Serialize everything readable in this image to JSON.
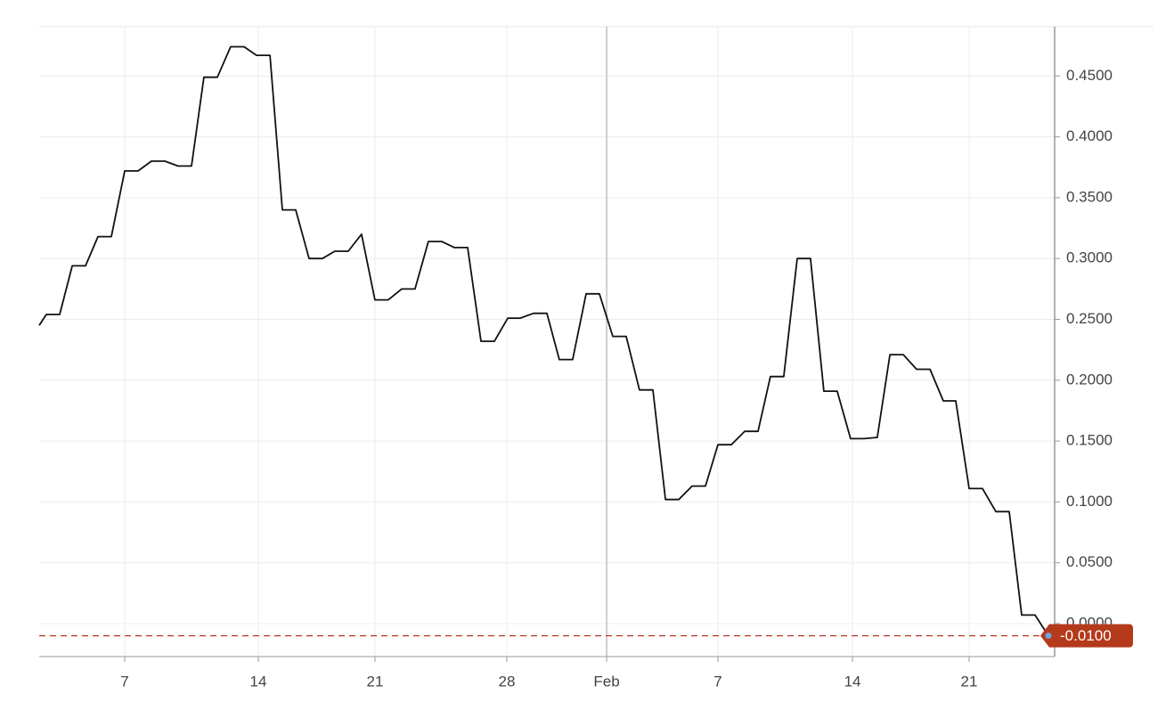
{
  "chart_data": {
    "type": "line",
    "color": "#111111",
    "grid": true,
    "x": [
      0,
      0.53,
      1.53,
      2.47,
      3.47,
      4.4,
      5.4,
      6.4,
      7.4,
      8.4,
      9.4,
      10.4,
      11.4,
      12.33,
      13.33,
      14.33,
      15.33,
      16.27,
      17.27,
      18.2,
      19.2,
      20.2,
      21.2,
      22.13,
      23.13,
      24.13,
      25.13,
      26.13,
      27.13,
      28.13,
      29.13,
      30.13,
      31.07,
      32.07,
      33.07,
      34.07,
      35.07,
      36,
      37,
      38,
      38.93,
      39.93,
      40.93,
      41.93,
      42.93,
      43.93,
      44.93,
      45.93,
      46.87,
      47.87,
      48.87,
      49.87,
      50.8,
      51.8,
      52.8,
      53.8,
      54.73,
      55.73,
      56.73,
      57.73,
      58.73,
      59.73,
      60.73,
      61.73,
      62.73,
      63.67,
      64.67,
      65.67,
      66.67,
      67.67,
      68.6,
      69.6,
      70.6,
      71.6,
      72.6,
      73.53,
      74.53,
      75.53
    ],
    "values": [
      0.245,
      0.254,
      0.254,
      0.294,
      0.294,
      0.318,
      0.318,
      0.372,
      0.372,
      0.38,
      0.38,
      0.376,
      0.376,
      0.449,
      0.449,
      0.474,
      0.474,
      0.467,
      0.467,
      0.34,
      0.34,
      0.3,
      0.3,
      0.306,
      0.306,
      0.32,
      0.266,
      0.266,
      0.275,
      0.275,
      0.314,
      0.314,
      0.309,
      0.309,
      0.232,
      0.232,
      0.251,
      0.251,
      0.255,
      0.255,
      0.217,
      0.217,
      0.271,
      0.271,
      0.236,
      0.236,
      0.192,
      0.192,
      0.102,
      0.102,
      0.113,
      0.113,
      0.147,
      0.147,
      0.158,
      0.158,
      0.203,
      0.203,
      0.3,
      0.3,
      0.191,
      0.191,
      0.152,
      0.152,
      0.153,
      0.221,
      0.221,
      0.209,
      0.209,
      0.183,
      0.183,
      0.111,
      0.111,
      0.092,
      0.092,
      0.007,
      0.007,
      -0.01
    ],
    "xlim": [
      0,
      76
    ],
    "xticks": [
      {
        "value": 6.4,
        "label": "7"
      },
      {
        "value": 16.4,
        "label": "14"
      },
      {
        "value": 25.13,
        "label": "21"
      },
      {
        "value": 35,
        "label": "28"
      },
      {
        "value": 42.47,
        "label": "Feb"
      },
      {
        "value": 50.8,
        "label": "7"
      },
      {
        "value": 60.87,
        "label": "14"
      },
      {
        "value": 69.6,
        "label": "21"
      }
    ],
    "ylim": [
      -0.0271,
      0.4905
    ],
    "yticks": [
      {
        "value": 0,
        "label": "0.0000"
      },
      {
        "value": 0.05,
        "label": "0.0500"
      },
      {
        "value": 0.1,
        "label": "0.1000"
      },
      {
        "value": 0.15,
        "label": "0.1500"
      },
      {
        "value": 0.2,
        "label": "0.2000"
      },
      {
        "value": 0.25,
        "label": "0.2500"
      },
      {
        "value": 0.3,
        "label": "0.3000"
      },
      {
        "value": 0.35,
        "label": "0.3500"
      },
      {
        "value": 0.4,
        "label": "0.4000"
      },
      {
        "value": 0.45,
        "label": "0.4500"
      }
    ],
    "reference_line": {
      "value": -0.01,
      "label": "-0.0100",
      "color": "#b5391b"
    }
  }
}
